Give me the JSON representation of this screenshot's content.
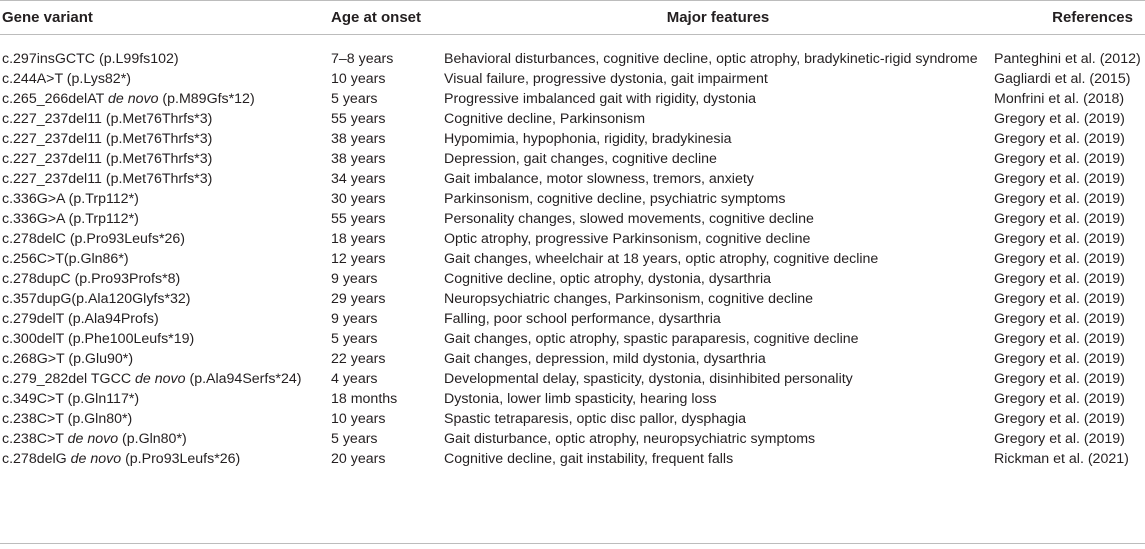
{
  "table": {
    "headers": {
      "variant": "Gene variant",
      "age": "Age at onset",
      "features": "Major features",
      "refs": "References"
    },
    "rows": [
      {
        "variant_pre": "c.297insGCTC",
        "variant_italic": "",
        "variant_post": " (p.L99fs102)",
        "age": "7–8 years",
        "features": "Behavioral disturbances, cognitive decline, optic atrophy, bradykinetic-rigid syndrome",
        "ref": "Panteghini et al. (2012)"
      },
      {
        "variant_pre": "c.244A>T (p.Lys82*)",
        "variant_italic": "",
        "variant_post": "",
        "age": "10 years",
        "features": "Visual failure, progressive dystonia, gait impairment",
        "ref": "Gagliardi et al. (2015)"
      },
      {
        "variant_pre": "c.265_266delAT ",
        "variant_italic": "de novo",
        "variant_post": " (p.M89Gfs*12)",
        "age": "5 years",
        "features": "Progressive imbalanced gait with rigidity, dystonia",
        "ref": "Monfrini et al. (2018)"
      },
      {
        "variant_pre": "c.227_237del11 (p.Met76Thrfs*3)",
        "variant_italic": "",
        "variant_post": "",
        "age": "55 years",
        "features": "Cognitive decline, Parkinsonism",
        "ref": "Gregory et al. (2019)"
      },
      {
        "variant_pre": "c.227_237del11 (p.Met76Thrfs*3)",
        "variant_italic": "",
        "variant_post": "",
        "age": "38 years",
        "features": "Hypomimia, hypophonia, rigidity, bradykinesia",
        "ref": "Gregory et al. (2019)"
      },
      {
        "variant_pre": "c.227_237del11 (p.Met76Thrfs*3)",
        "variant_italic": "",
        "variant_post": "",
        "age": "38 years",
        "features": "Depression, gait changes, cognitive decline",
        "ref": "Gregory et al. (2019)"
      },
      {
        "variant_pre": "c.227_237del11 (p.Met76Thrfs*3)",
        "variant_italic": "",
        "variant_post": "",
        "age": "34 years",
        "features": "Gait imbalance, motor slowness, tremors, anxiety",
        "ref": "Gregory et al. (2019)"
      },
      {
        "variant_pre": "c.336G>A (p.Trp112*)",
        "variant_italic": "",
        "variant_post": "",
        "age": "30 years",
        "features": "Parkinsonism, cognitive decline, psychiatric symptoms",
        "ref": "Gregory et al. (2019)"
      },
      {
        "variant_pre": "c.336G>A (p.Trp112*)",
        "variant_italic": "",
        "variant_post": "",
        "age": "55 years",
        "features": "Personality changes, slowed movements, cognitive decline",
        "ref": "Gregory et al. (2019)"
      },
      {
        "variant_pre": "c.278delC (p.Pro93Leufs*26)",
        "variant_italic": "",
        "variant_post": "",
        "age": "18 years",
        "features": "Optic atrophy, progressive Parkinsonism, cognitive decline",
        "ref": "Gregory et al. (2019)"
      },
      {
        "variant_pre": "c.256C>T(p.Gln86*)",
        "variant_italic": "",
        "variant_post": "",
        "age": "12 years",
        "features": "Gait changes, wheelchair at 18 years, optic atrophy, cognitive decline",
        "ref": "Gregory et al. (2019)"
      },
      {
        "variant_pre": "c.278dupC (p.Pro93Profs*8)",
        "variant_italic": "",
        "variant_post": "",
        "age": "9 years",
        "features": "Cognitive decline, optic atrophy, dystonia, dysarthria",
        "ref": "Gregory et al. (2019)"
      },
      {
        "variant_pre": "c.357dupG(p.Ala120Glyfs*32)",
        "variant_italic": "",
        "variant_post": "",
        "age": "29 years",
        "features": "Neuropsychiatric changes, Parkinsonism, cognitive decline",
        "ref": "Gregory et al. (2019)"
      },
      {
        "variant_pre": "c.279delT (p.Ala94Profs)",
        "variant_italic": "",
        "variant_post": "",
        "age": "9 years",
        "features": "Falling, poor school performance, dysarthria",
        "ref": "Gregory et al. (2019)"
      },
      {
        "variant_pre": "c.300delT (p.Phe100Leufs*19)",
        "variant_italic": "",
        "variant_post": "",
        "age": "5 years",
        "features": "Gait changes, optic atrophy, spastic paraparesis, cognitive decline",
        "ref": "Gregory et al. (2019)"
      },
      {
        "variant_pre": "c.268G>T (p.Glu90*)",
        "variant_italic": "",
        "variant_post": "",
        "age": "22 years",
        "features": "Gait changes, depression, mild dystonia, dysarthria",
        "ref": "Gregory et al. (2019)"
      },
      {
        "variant_pre": "c.279_282del TGCC ",
        "variant_italic": "de novo",
        "variant_post": " (p.Ala94Serfs*24)",
        "age": "4 years",
        "features": "Developmental delay, spasticity, dystonia, disinhibited personality",
        "ref": "Gregory et al. (2019)"
      },
      {
        "variant_pre": "c.349C>T (p.Gln117*)",
        "variant_italic": "",
        "variant_post": "",
        "age": "18 months",
        "features": "Dystonia, lower limb spasticity, hearing loss",
        "ref": "Gregory et al. (2019)"
      },
      {
        "variant_pre": "c.238C>T (p.Gln80*)",
        "variant_italic": "",
        "variant_post": "",
        "age": "10 years",
        "features": "Spastic tetraparesis, optic disc pallor, dysphagia",
        "ref": "Gregory et al. (2019)"
      },
      {
        "variant_pre": "c.238C>T ",
        "variant_italic": "de novo",
        "variant_post": " (p.Gln80*)",
        "age": "5 years",
        "features": "Gait disturbance, optic atrophy, neuropsychiatric symptoms",
        "ref": "Gregory et al. (2019)"
      },
      {
        "variant_pre": "c.278delG ",
        "variant_italic": "de novo",
        "variant_post": " (p.Pro93Leufs*26)",
        "age": "20 years",
        "features": "Cognitive decline, gait instability, frequent falls",
        "ref": "Rickman et al. (2021)"
      }
    ]
  }
}
